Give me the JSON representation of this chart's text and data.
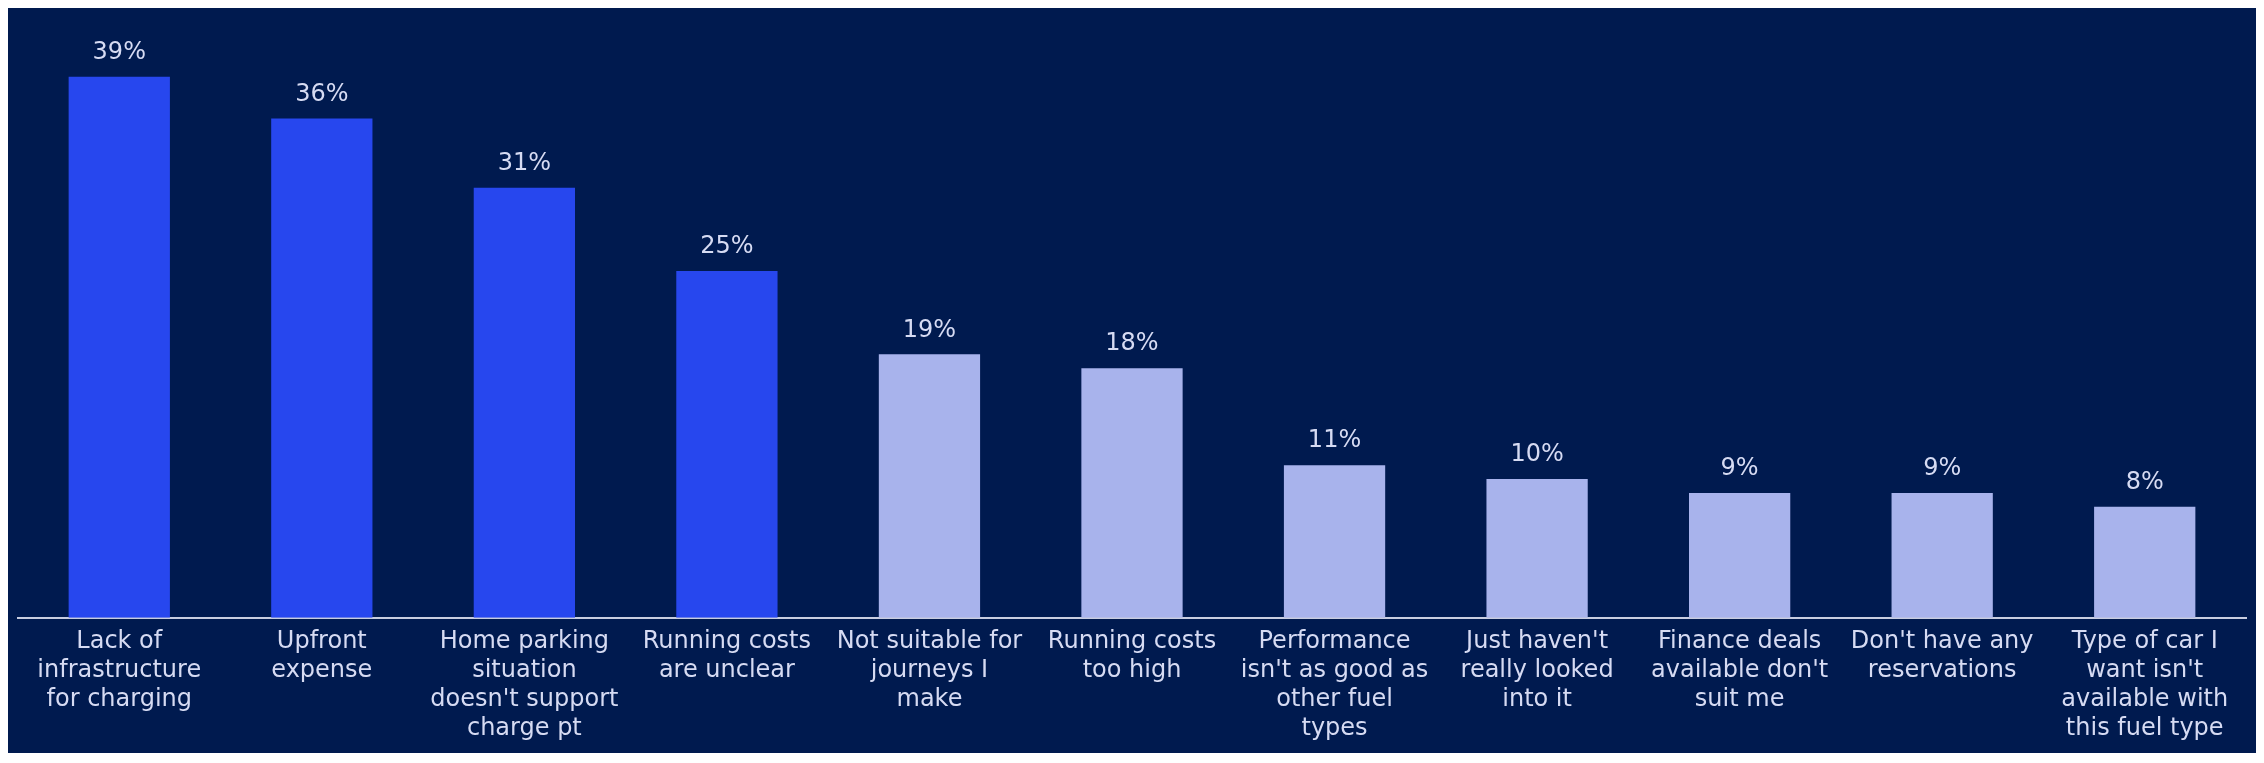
{
  "chart_data": {
    "type": "bar",
    "categories": [
      "Lack of infrastructure for charging",
      "Upfront expense",
      "Home parking situation doesn't support charge pt",
      "Running costs are unclear",
      "Not suitable for journeys I make",
      "Running costs too high",
      "Performance isn't as good as other fuel types",
      "Just haven't really looked into it",
      "Finance deals available don't suit me",
      "Don't have any reservations",
      "Type of car I want isn't available with this fuel type"
    ],
    "values": [
      39,
      36,
      31,
      25,
      19,
      18,
      11,
      10,
      9,
      9,
      8
    ],
    "colors": [
      "#2747ee",
      "#2747ee",
      "#2747ee",
      "#2747ee",
      "#a8b3ec",
      "#a8b3ec",
      "#a8b3ec",
      "#a8b3ec",
      "#a8b3ec",
      "#a8b3ec",
      "#a8b3ec"
    ],
    "value_labels": [
      "39%",
      "36%",
      "31%",
      "25%",
      "19%",
      "18%",
      "11%",
      "10%",
      "9%",
      "9%",
      "8%"
    ],
    "grid": false,
    "legend": false
  }
}
